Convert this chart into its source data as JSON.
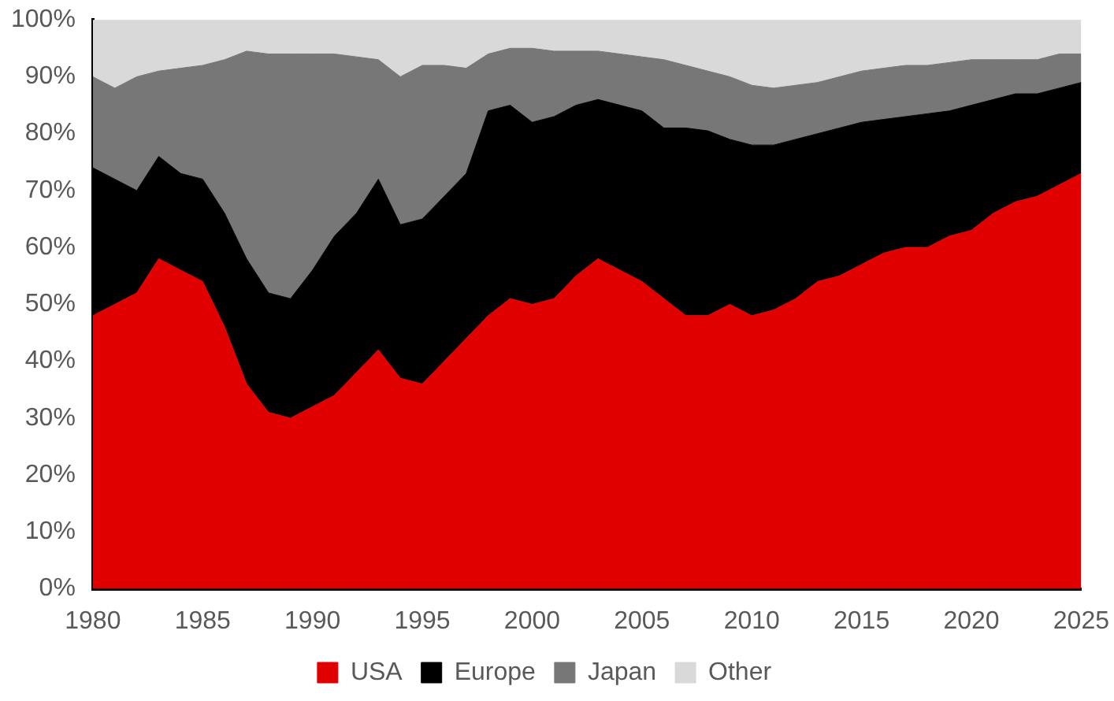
{
  "chart_data": {
    "type": "area",
    "stacked": true,
    "x": [
      1980,
      1981,
      1982,
      1983,
      1984,
      1985,
      1986,
      1987,
      1988,
      1989,
      1990,
      1991,
      1992,
      1993,
      1994,
      1995,
      1996,
      1997,
      1998,
      1999,
      2000,
      2001,
      2002,
      2003,
      2004,
      2005,
      2006,
      2007,
      2008,
      2009,
      2010,
      2011,
      2012,
      2013,
      2014,
      2015,
      2016,
      2017,
      2018,
      2019,
      2020,
      2021,
      2022,
      2023,
      2024,
      2025
    ],
    "series": [
      {
        "name": "USA",
        "color": "#e00000",
        "values": [
          48,
          50,
          52,
          58,
          56,
          54,
          46,
          36,
          31,
          30,
          32,
          34,
          38,
          42,
          37,
          36,
          40,
          44,
          48,
          51,
          50,
          51,
          55,
          58,
          56,
          54,
          51,
          48,
          48,
          50,
          48,
          49,
          51,
          54,
          55,
          57,
          59,
          60,
          60,
          62,
          63,
          66,
          68,
          69,
          71,
          73
        ]
      },
      {
        "name": "Europe",
        "color": "#000000",
        "values": [
          26,
          22,
          18,
          18,
          17,
          18,
          20,
          22,
          21,
          21,
          24,
          28,
          28,
          30,
          27,
          29,
          29,
          29,
          36,
          34,
          32,
          32,
          30,
          28,
          29,
          30,
          30,
          33,
          32.5,
          29,
          30,
          29,
          28,
          26,
          26,
          25,
          23.5,
          23,
          23.5,
          22,
          22,
          20,
          19,
          18,
          17,
          16
        ]
      },
      {
        "name": "Japan",
        "color": "#777777",
        "values": [
          16,
          16,
          20,
          15,
          18.5,
          20,
          27,
          36.5,
          42,
          43,
          38,
          32,
          27.5,
          21,
          26,
          27,
          23,
          18.5,
          10,
          10,
          13,
          11.5,
          9.5,
          8.5,
          9,
          9.5,
          12,
          11,
          10.5,
          11,
          10.5,
          10,
          9.5,
          9,
          9,
          9,
          9,
          9,
          8.5,
          8.5,
          8,
          7,
          6,
          6,
          6,
          5
        ]
      },
      {
        "name": "Other",
        "color": "#d9d9d9",
        "values": [
          10,
          12,
          10,
          9,
          8.5,
          8,
          7,
          5.5,
          6,
          6,
          6,
          6,
          6.5,
          7,
          10,
          8,
          8,
          8.5,
          6,
          5,
          5,
          5.5,
          5.5,
          5.5,
          6,
          6.5,
          7,
          8,
          9,
          10,
          11.5,
          12,
          11.5,
          11,
          10,
          9,
          8.5,
          8,
          8,
          7.5,
          7,
          7,
          7,
          7,
          6,
          6
        ]
      }
    ],
    "xlim": [
      1980,
      2025
    ],
    "xticks": [
      1980,
      1985,
      1990,
      1995,
      2000,
      2005,
      2010,
      2015,
      2020,
      2025
    ],
    "ylim": [
      0,
      100
    ],
    "yticks": [
      {
        "value": 0,
        "label": "0%"
      },
      {
        "value": 10,
        "label": "10%"
      },
      {
        "value": 20,
        "label": "20%"
      },
      {
        "value": 30,
        "label": "30%"
      },
      {
        "value": 40,
        "label": "40%"
      },
      {
        "value": 50,
        "label": "50%"
      },
      {
        "value": 60,
        "label": "60%"
      },
      {
        "value": 70,
        "label": "70%"
      },
      {
        "value": 80,
        "label": "80%"
      },
      {
        "value": 90,
        "label": "90%"
      },
      {
        "value": 100,
        "label": "100%"
      }
    ],
    "grid": false,
    "legend": "bottom"
  }
}
